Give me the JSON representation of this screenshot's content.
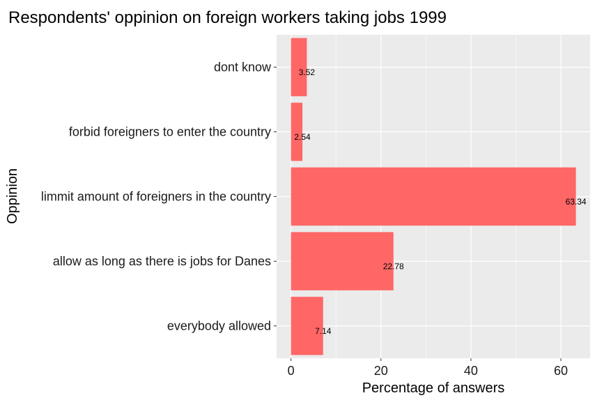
{
  "chart_data": {
    "type": "bar",
    "orientation": "horizontal",
    "title": "Respondents' oppinion on foreign workers taking jobs 1999",
    "xlabel": "Percentage of answers",
    "ylabel": "Oppinion",
    "categories": [
      "dont know",
      "forbid foreigners to enter the country",
      "limmit amount of foreigners in the country",
      "allow as long as there is jobs for Danes",
      "everybody allowed"
    ],
    "values": [
      3.52,
      2.54,
      63.34,
      22.78,
      7.14
    ],
    "data_labels": [
      "3.52",
      "2.54",
      "63.34",
      "22.78",
      "7.14"
    ],
    "xlim": [
      -3.2,
      66.5
    ],
    "xticks": [
      0,
      20,
      40,
      60
    ],
    "grid": true,
    "bar_color": "#ff6666",
    "panel_color": "#ebebeb",
    "grid_color": "#ffffff"
  }
}
